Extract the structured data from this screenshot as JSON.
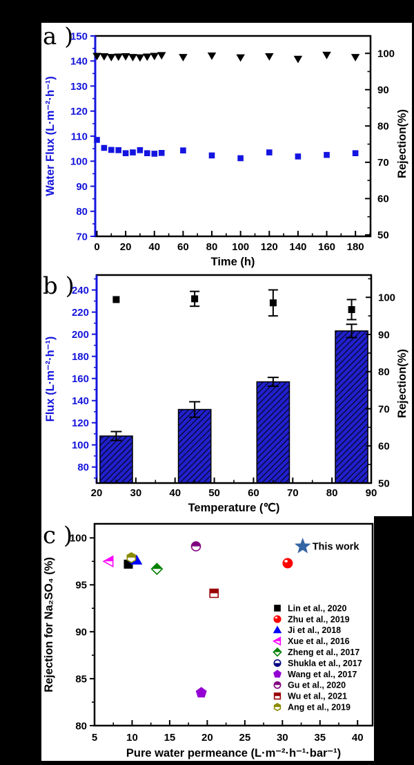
{
  "figure": {
    "background": "#000000",
    "panel_labels": [
      "a )",
      "b )",
      "c )"
    ]
  },
  "chart_data": [
    {
      "panel": "a",
      "type": "scatter",
      "xlabel": "Time (h)",
      "x_ticks": [
        0,
        20,
        40,
        60,
        80,
        100,
        120,
        140,
        160,
        180
      ],
      "x_range": [
        -1.2,
        190.5
      ],
      "left_axis": {
        "label": "Water Flux (L·m⁻²·h⁻¹)",
        "color": "#1414DC",
        "ticks": [
          70,
          80,
          90,
          100,
          110,
          120,
          130,
          140,
          150
        ],
        "range": [
          70,
          150
        ]
      },
      "right_axis": {
        "label": "Rejection(%)",
        "color": "#000000",
        "ticks": [
          50,
          60,
          70,
          80,
          90,
          100
        ],
        "range": [
          49.6,
          104.8
        ]
      },
      "series": [
        {
          "name": "water-flux",
          "axis": "left",
          "marker": "square",
          "color": "#1414E0",
          "x": [
            0,
            5,
            10,
            15,
            20,
            25,
            30,
            35,
            40,
            45,
            60,
            80,
            100,
            120,
            140,
            160,
            180
          ],
          "y": [
            108.5,
            105.3,
            104.5,
            104.4,
            103.2,
            103.5,
            104.4,
            103.2,
            103.0,
            103.3,
            104.3,
            102.3,
            101.2,
            103.5,
            101.9,
            102.5,
            103.2
          ]
        },
        {
          "name": "rejection",
          "axis": "right",
          "marker": "triangle-down",
          "color": "#000000",
          "x": [
            0,
            5,
            10,
            15,
            20,
            25,
            30,
            35,
            40,
            45,
            60,
            80,
            100,
            120,
            140,
            160,
            180
          ],
          "y": [
            99.3,
            99.2,
            99.0,
            99.1,
            99.2,
            99.0,
            98.9,
            99.1,
            99.3,
            99.5,
            99.0,
            99.4,
            98.9,
            99.2,
            98.5,
            99.6,
            99.0
          ]
        }
      ]
    },
    {
      "panel": "b",
      "type": "bar+scatter",
      "xlabel": "Temperature (℃)",
      "x_ticks": [
        20,
        30,
        40,
        50,
        60,
        70,
        80,
        90
      ],
      "x_range": [
        20,
        90
      ],
      "left_axis": {
        "label": "Flux (L·m⁻²·h⁻¹)",
        "color": "#1414DC",
        "ticks": [
          80,
          100,
          120,
          140,
          160,
          180,
          200,
          220,
          240
        ],
        "range": [
          65.5,
          253.5
        ]
      },
      "right_axis": {
        "label": "Rejection(%)",
        "color": "#000000",
        "ticks": [
          50,
          60,
          70,
          80,
          90,
          100
        ],
        "range": [
          50,
          106
        ]
      },
      "bars": {
        "name": "flux-bars",
        "color": "#2020CC",
        "hatch": "diagonal",
        "width": 8.3,
        "x": [
          25,
          45,
          65,
          85
        ],
        "values": [
          108,
          132,
          157,
          203
        ],
        "errors": [
          4,
          7,
          4,
          6
        ]
      },
      "scatter": {
        "name": "rejection",
        "marker": "square",
        "color": "#000000",
        "x": [
          25,
          45,
          65,
          85
        ],
        "y": [
          99.4,
          99.6,
          98.5,
          96.7
        ],
        "errors": [
          0,
          2.0,
          3.5,
          2.7
        ]
      }
    },
    {
      "panel": "c",
      "type": "scatter",
      "xlabel": "Pure water permeance (L·m⁻²·h⁻¹·bar⁻¹)",
      "ylabel": "Rejection for Na₂SO₄ (%)",
      "x_ticks": [
        5,
        10,
        15,
        20,
        25,
        30,
        35,
        40
      ],
      "x_range": [
        5,
        42
      ],
      "y_ticks": [
        80,
        85,
        90,
        95,
        100
      ],
      "y_range": [
        80,
        101.5
      ],
      "points": [
        {
          "label": "Lin et al., 2020",
          "marker": "square",
          "fill": "full",
          "color": "#000000",
          "x": 9.5,
          "y": 97.2
        },
        {
          "label": "Zhu et al., 2019",
          "marker": "sphere",
          "fill": "full",
          "color": "#FF0000",
          "x": 30.7,
          "y": 97.3
        },
        {
          "label": "Ji et al., 2018",
          "marker": "triangle-up",
          "fill": "full",
          "color": "#0000FF",
          "x": 10.6,
          "y": 97.6
        },
        {
          "label": "Xue et al., 2016",
          "marker": "triangle-left",
          "fill": "half-top",
          "color": "#FF00FF",
          "x": 6.9,
          "y": 97.5
        },
        {
          "label": "Zheng et al., 2017",
          "marker": "diamond",
          "fill": "half-top",
          "color": "#008000",
          "x": 13.3,
          "y": 96.7
        },
        {
          "label": "Shukla et al., 2017",
          "marker": "circle",
          "fill": "half-bottom",
          "color": "#000080",
          "x": 10.1,
          "y": 97.7
        },
        {
          "label": "Wang et al., 2017",
          "marker": "pentagon",
          "fill": "full",
          "color": "#9400D3",
          "x": 19.2,
          "y": 83.5
        },
        {
          "label": "Gu et al., 2020",
          "marker": "circle",
          "fill": "half-top",
          "color": "#800080",
          "x": 18.5,
          "y": 99.1
        },
        {
          "label": "Wu et al., 2021",
          "marker": "square",
          "fill": "half-top",
          "color": "#990000",
          "x": 20.9,
          "y": 94.1
        },
        {
          "label": "Ang et al., 2019",
          "marker": "hexagon",
          "fill": "half-top",
          "color": "#8B8B00",
          "x": 9.9,
          "y": 97.9
        }
      ],
      "this_work": {
        "label": "This work",
        "marker": "star",
        "fill": "full",
        "color": "#3465A4",
        "x": 32.7,
        "y": 99.1
      }
    }
  ]
}
